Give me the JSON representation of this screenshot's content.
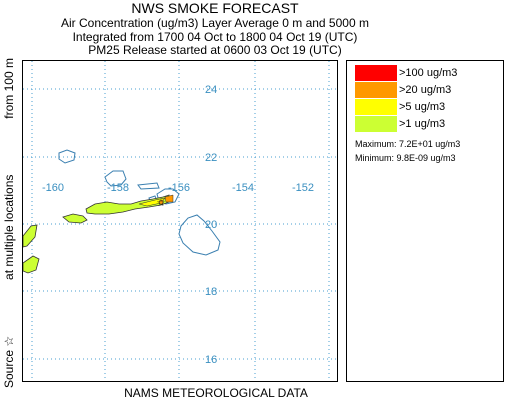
{
  "header": {
    "title": "NWS SMOKE FORECAST",
    "line1": "Air Concentration (ug/m3) Layer Average    0 m and  5000 m",
    "line2": "Integrated from 1700 04 Oct to 1800 04 Oct 19 (UTC)",
    "line3": "PM25 Release started at 0600 03 Oct 19 (UTC)"
  },
  "map": {
    "longitude_labels": [
      "-160",
      "-158",
      "-156",
      "-154",
      "-152"
    ],
    "latitude_labels": [
      "24",
      "22",
      "20",
      "18",
      "16"
    ],
    "gridline_color": "#4a9fd0",
    "coastline_color": "#3a7fb0",
    "source_marker": "star"
  },
  "legend": {
    "items": [
      {
        "label": ">100 ug/m3",
        "color": "#ff0000"
      },
      {
        "label": ">20 ug/m3",
        "color": "#ff9900"
      },
      {
        "label": ">5 ug/m3",
        "color": "#ffff00"
      },
      {
        "label": ">1 ug/m3",
        "color": "#ccff33"
      }
    ],
    "maximum": "Maximum: 7.2E+01 ug/m3",
    "minimum": "Minimum: 9.8E-09 ug/m3"
  },
  "axis": {
    "ylabel_source": "Source ☆",
    "ylabel_locations": "at multiple locations",
    "ylabel_from": "from   100 m",
    "xlabel": "NAMS METEOROLOGICAL DATA"
  }
}
